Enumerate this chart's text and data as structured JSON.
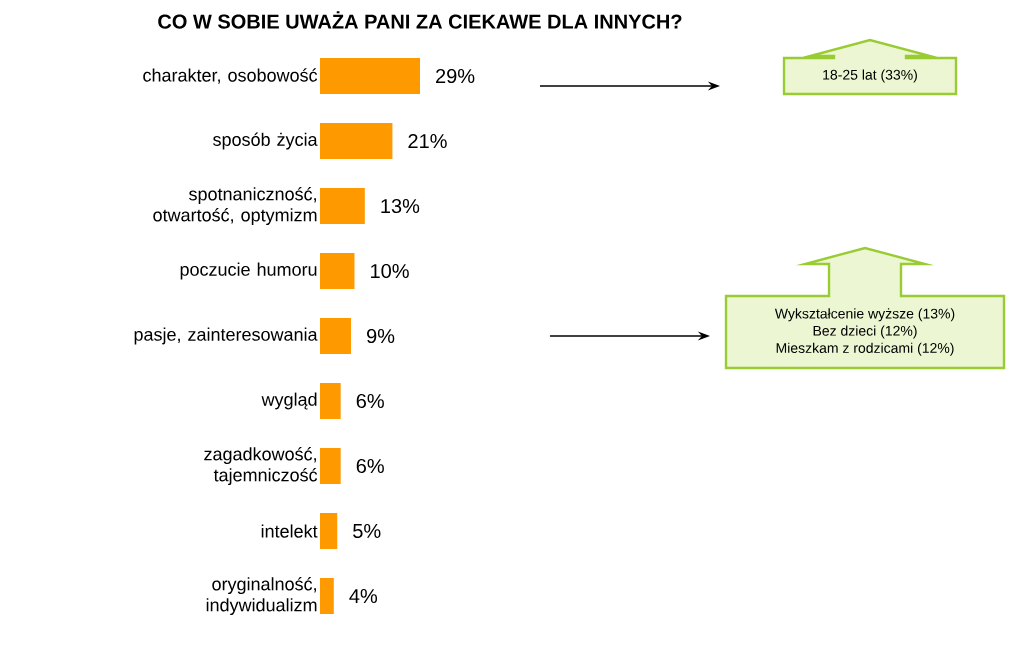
{
  "chart_data": {
    "type": "bar",
    "orientation": "horizontal",
    "title": "CO W SOBIE UWAŻA PANI ZA CIEKAWE DLA INNYCH?",
    "categories": [
      "charakter, osobowość",
      "sposób życia",
      "spotnaniczność, otwartość, optymizm",
      "poczucie humoru",
      "pasje, zainteresowania",
      "wygląd",
      "zagadkowość, tajemniczość",
      "intelekt",
      "oryginalność, indywidualizm"
    ],
    "values": [
      29,
      21,
      13,
      10,
      9,
      6,
      6,
      5,
      4
    ],
    "value_labels": [
      "29%",
      "21%",
      "13%",
      "10%",
      "9%",
      "6%",
      "6%",
      "5%",
      "4%"
    ],
    "color": "#ff9900",
    "tick_labels": "y",
    "annotations": [
      "18-25 lat (33%)",
      "Wykształcenie wyższe (13%)",
      "Bez dzieci (12%)",
      "Mieszkam z rodzicami (12%)"
    ]
  }
}
